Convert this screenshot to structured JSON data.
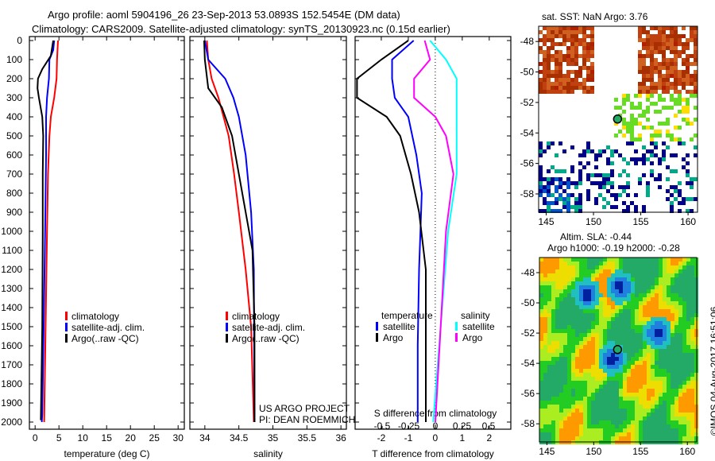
{
  "title_line1": "Argo profile: aoml 5904196_26 23-Sep-2013 53.0893S 152.5454E (DM data)",
  "title_line2": "Climatology: CARS2009. Satellite-adjusted climatology: synTS_20130923.nc (0.15d earlier)",
  "colors": {
    "climatology": "#ff0000",
    "satellite": "#0000ff",
    "argo": "#000000",
    "sal_satellite": "#00ffff",
    "sal_argo": "#ff00ff"
  },
  "chart_data": [
    {
      "type": "line",
      "xlabel": "temperature (deg C)",
      "xlim": [
        -1.2,
        31.3
      ],
      "ylim": [
        2037,
        0
      ],
      "xticks": [
        "0",
        "5",
        "10",
        "15",
        "20",
        "25",
        "30"
      ],
      "xtick_values": [
        0,
        5,
        10,
        15,
        20,
        25,
        30
      ],
      "yticks": [
        "0",
        "100",
        "200",
        "300",
        "400",
        "500",
        "600",
        "700",
        "800",
        "900",
        "1000",
        "1100",
        "1200",
        "1300",
        "1400",
        "1500",
        "1600",
        "1700",
        "1800",
        "1900",
        "2000"
      ],
      "legend": [
        "climatology",
        "satellite-adj. clim.",
        "Argo(..raw -QC)"
      ],
      "series": [
        {
          "name": "climatology",
          "color": "#ff0000",
          "depth": [
            0,
            100,
            200,
            300,
            400,
            500,
            700,
            1000,
            1500,
            2000
          ],
          "values": [
            4.8,
            4.6,
            4.5,
            4.0,
            3.3,
            3.0,
            2.7,
            2.5,
            2.2,
            1.9
          ]
        },
        {
          "name": "satellite-adj. clim.",
          "color": "#0000ff",
          "depth": [
            0,
            50,
            100,
            200,
            300,
            400,
            600,
            1000,
            1500,
            1960,
            2000
          ],
          "values": [
            4.0,
            3.8,
            3.0,
            2.9,
            2.5,
            2.3,
            2.3,
            2.1,
            1.8,
            1.5,
            1.4
          ]
        },
        {
          "name": "Argo(..raw -QC)",
          "color": "#000000",
          "depth": [
            0,
            80,
            150,
            200,
            250,
            300,
            400,
            500,
            700,
            1000,
            1500,
            1990
          ],
          "values": [
            3.8,
            3.3,
            1.5,
            0.6,
            0.5,
            0.8,
            1.5,
            1.7,
            1.6,
            1.6,
            1.5,
            1.2
          ]
        }
      ]
    },
    {
      "type": "line",
      "xlabel": "salinity",
      "xlim": [
        33.78,
        36.08
      ],
      "ylim": [
        2037,
        0
      ],
      "xticks": [
        "34",
        "34.5",
        "35",
        "35.5",
        "36"
      ],
      "xtick_values": [
        34,
        34.5,
        35,
        35.5,
        36
      ],
      "legend": [
        "climatology",
        "satellite-adj. clim.",
        "Argo(..raw -QC)"
      ],
      "annotation": [
        "US ARGO PROJECT",
        "PI: DEAN ROEMMICH"
      ],
      "series": [
        {
          "name": "climatology",
          "color": "#ff0000",
          "depth": [
            0,
            100,
            200,
            300,
            500,
            700,
            900,
            1200,
            1500,
            2000
          ],
          "values": [
            34.03,
            34.05,
            34.1,
            34.2,
            34.35,
            34.43,
            34.5,
            34.6,
            34.68,
            34.72
          ]
        },
        {
          "name": "satellite-adj. clim.",
          "color": "#0000ff",
          "depth": [
            0,
            100,
            200,
            300,
            400,
            600,
            900,
            1200,
            2000
          ],
          "values": [
            34.0,
            34.05,
            34.3,
            34.42,
            34.5,
            34.6,
            34.68,
            34.72,
            34.73
          ]
        },
        {
          "name": "Argo(..raw -QC)",
          "color": "#000000",
          "depth": [
            0,
            100,
            250,
            350,
            500,
            700,
            900,
            1100,
            1500,
            2000
          ],
          "values": [
            33.99,
            34.0,
            34.05,
            34.25,
            34.4,
            34.5,
            34.6,
            34.7,
            34.73,
            34.73
          ]
        }
      ]
    },
    {
      "type": "line",
      "xlabel": "T difference from climatology",
      "xlabel2": "S difference from climatology",
      "xlim": [
        -2.97,
        2.8
      ],
      "s_xlim": [
        -0.5,
        0.5
      ],
      "ylim": [
        2037,
        0
      ],
      "xticks": [
        "-2",
        "-1",
        "0",
        "1",
        "2"
      ],
      "xtick_values": [
        -2,
        -1,
        0,
        1,
        2
      ],
      "s_xticks": [
        "-0.5",
        "-0.25",
        "0",
        "0.25",
        "0.5"
      ],
      "s_xtick_values": [
        -0.5,
        -0.25,
        0,
        0.25,
        0.5
      ],
      "legend_temperature": {
        "title": "temperature",
        "items": [
          "satellite",
          "Argo"
        ]
      },
      "legend_salinity": {
        "title": "salinity",
        "items": [
          "satellite",
          "Argo"
        ]
      },
      "series": [
        {
          "name": "temperature satellite",
          "color": "#0000ff",
          "axis": "T",
          "depth": [
            0,
            100,
            200,
            300,
            400,
            600,
            800,
            1200,
            1600,
            2000
          ],
          "values": [
            -0.8,
            -1.6,
            -1.6,
            -1.5,
            -1.0,
            -0.7,
            -0.5,
            -0.6,
            -0.65,
            -0.65
          ]
        },
        {
          "name": "temperature Argo",
          "color": "#000000",
          "axis": "T",
          "depth": [
            0,
            100,
            200,
            300,
            400,
            500,
            700,
            900,
            1200,
            2000
          ],
          "values": [
            -1.0,
            -2.0,
            -2.9,
            -2.9,
            -1.8,
            -1.3,
            -0.9,
            -0.6,
            -0.35,
            -0.35
          ]
        },
        {
          "name": "salinity satellite",
          "color": "#00ffff",
          "axis": "S",
          "depth": [
            0,
            100,
            200,
            300,
            500,
            700,
            1000,
            1500,
            2000
          ],
          "values": [
            -0.05,
            0.1,
            0.2,
            0.2,
            0.2,
            0.2,
            0.12,
            0.05,
            -0.02
          ]
        },
        {
          "name": "salinity Argo",
          "color": "#ff00ff",
          "axis": "S",
          "depth": [
            0,
            100,
            200,
            300,
            400,
            500,
            700,
            1000,
            1500,
            2000
          ],
          "values": [
            -0.1,
            -0.05,
            -0.2,
            -0.2,
            0.0,
            0.1,
            0.17,
            0.1,
            0.05,
            0.0
          ]
        }
      ]
    },
    {
      "type": "heatmap",
      "title": "sat. SST: NaN Argo: 3.76",
      "xticks": [
        "145",
        "150",
        "155",
        "160"
      ],
      "xtick_values": [
        145,
        150,
        155,
        160
      ],
      "yticks": [
        "-48",
        "-50",
        "-52",
        "-54",
        "-56",
        "-58"
      ],
      "ytick_values": [
        -48,
        -50,
        -52,
        -54,
        -56,
        -58
      ],
      "xlim": [
        144.2,
        161
      ],
      "ylim": [
        -59.2,
        -47
      ]
    },
    {
      "type": "heatmap",
      "title_line1": "Altim. SLA: -0.44",
      "title_line2": "Argo h1000: -0.19 h2000: -0.28",
      "xticks": [
        "145",
        "150",
        "155",
        "160"
      ],
      "xtick_values": [
        145,
        150,
        155,
        160
      ],
      "yticks": [
        "-48",
        "-50",
        "-52",
        "-54",
        "-56",
        "-58"
      ],
      "ytick_values": [
        -48,
        -50,
        -52,
        -54,
        -56,
        -58
      ],
      "xlim": [
        144.2,
        161
      ],
      "ylim": [
        -59.2,
        -47
      ]
    }
  ],
  "float_position": {
    "lon": 152.5454,
    "lat": -53.0893
  },
  "credit": "©IMOS 04-Aug-2017 16:51:06"
}
